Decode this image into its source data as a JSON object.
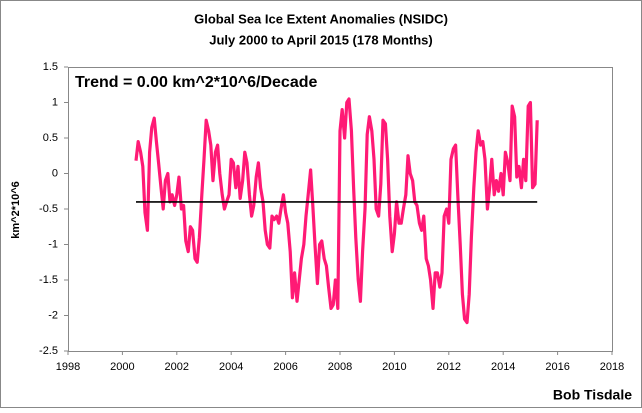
{
  "chart_data": {
    "type": "line",
    "title": "Global Sea Ice Extent Anomalies (NSIDC)",
    "subtitle": "July 2000 to April 2015 (178 Months)",
    "y_label": "km^2*10^6",
    "annotation": "Trend = 0.00 km^2*10^6/Decade",
    "credit": "Bob Tisdale",
    "color": "#ff1a75",
    "x": [
      2000.5,
      2000.58,
      2000.67,
      2000.75,
      2000.83,
      2000.92,
      2001,
      2001.08,
      2001.17,
      2001.25,
      2001.33,
      2001.42,
      2001.5,
      2001.58,
      2001.67,
      2001.75,
      2001.83,
      2001.92,
      2002,
      2002.08,
      2002.17,
      2002.25,
      2002.33,
      2002.42,
      2002.5,
      2002.58,
      2002.67,
      2002.75,
      2002.83,
      2002.92,
      2003,
      2003.08,
      2003.17,
      2003.25,
      2003.33,
      2003.42,
      2003.5,
      2003.58,
      2003.67,
      2003.75,
      2003.83,
      2003.92,
      2004,
      2004.08,
      2004.17,
      2004.25,
      2004.33,
      2004.42,
      2004.5,
      2004.58,
      2004.67,
      2004.75,
      2004.83,
      2004.92,
      2005,
      2005.08,
      2005.17,
      2005.25,
      2005.33,
      2005.42,
      2005.5,
      2005.58,
      2005.67,
      2005.75,
      2005.83,
      2005.92,
      2006,
      2006.08,
      2006.17,
      2006.25,
      2006.33,
      2006.42,
      2006.5,
      2006.58,
      2006.67,
      2006.75,
      2006.83,
      2006.92,
      2007,
      2007.08,
      2007.17,
      2007.25,
      2007.33,
      2007.42,
      2007.5,
      2007.58,
      2007.67,
      2007.75,
      2007.83,
      2007.92,
      2008,
      2008.08,
      2008.17,
      2008.25,
      2008.33,
      2008.42,
      2008.5,
      2008.58,
      2008.67,
      2008.75,
      2008.83,
      2008.92,
      2009,
      2009.08,
      2009.17,
      2009.25,
      2009.33,
      2009.42,
      2009.5,
      2009.58,
      2009.67,
      2009.75,
      2009.83,
      2009.92,
      2010,
      2010.08,
      2010.17,
      2010.25,
      2010.33,
      2010.42,
      2010.5,
      2010.58,
      2010.67,
      2010.75,
      2010.83,
      2010.92,
      2011,
      2011.08,
      2011.17,
      2011.25,
      2011.33,
      2011.42,
      2011.5,
      2011.58,
      2011.67,
      2011.75,
      2011.83,
      2011.92,
      2012,
      2012.08,
      2012.17,
      2012.25,
      2012.33,
      2012.42,
      2012.5,
      2012.58,
      2012.67,
      2012.75,
      2012.83,
      2012.92,
      2013,
      2013.08,
      2013.17,
      2013.25,
      2013.33,
      2013.42,
      2013.5,
      2013.58,
      2013.67,
      2013.75,
      2013.83,
      2013.92,
      2014,
      2014.08,
      2014.17,
      2014.25,
      2014.33,
      2014.42,
      2014.5,
      2014.58,
      2014.67,
      2014.75,
      2014.83,
      2014.92,
      2015,
      2015.08,
      2015.17,
      2015.25
    ],
    "values": [
      0.18,
      0.45,
      0.3,
      0.1,
      -0.55,
      -0.8,
      0.3,
      0.65,
      0.78,
      0.45,
      0.15,
      -0.2,
      -0.5,
      -0.1,
      0.0,
      -0.4,
      -0.3,
      -0.45,
      -0.3,
      -0.05,
      -0.5,
      -0.45,
      -0.95,
      -1.1,
      -0.75,
      -0.8,
      -1.2,
      -1.25,
      -0.9,
      -0.3,
      0.2,
      0.75,
      0.6,
      0.4,
      -0.1,
      0.3,
      0.4,
      0.0,
      -0.3,
      -0.5,
      -0.4,
      -0.3,
      0.2,
      0.15,
      -0.2,
      0.1,
      -0.35,
      -0.1,
      0.3,
      0.15,
      -0.3,
      -0.6,
      -0.45,
      -0.05,
      0.15,
      -0.2,
      -0.4,
      -0.8,
      -1.0,
      -1.05,
      -0.6,
      -0.65,
      -0.6,
      -0.7,
      -0.5,
      -0.3,
      -0.55,
      -0.7,
      -1.1,
      -1.75,
      -1.4,
      -1.8,
      -1.5,
      -1.2,
      -1.0,
      -0.6,
      -0.3,
      0.05,
      -0.45,
      -1.0,
      -1.55,
      -1.0,
      -0.95,
      -1.2,
      -1.3,
      -1.6,
      -1.9,
      -1.85,
      -1.5,
      -1.9,
      0.6,
      0.9,
      0.5,
      1.0,
      1.05,
      0.6,
      -0.2,
      -0.9,
      -1.5,
      -1.8,
      -1.1,
      -0.5,
      0.55,
      0.8,
      0.6,
      0.2,
      -0.5,
      -0.6,
      -0.15,
      0.75,
      0.7,
      0.2,
      -0.6,
      -1.1,
      -0.85,
      -0.4,
      -0.7,
      -0.7,
      -0.5,
      -0.3,
      0.25,
      0.0,
      -0.1,
      -0.4,
      -0.45,
      -0.7,
      -0.8,
      -0.6,
      -1.2,
      -1.3,
      -1.5,
      -1.9,
      -1.4,
      -1.4,
      -1.6,
      -1.4,
      -0.6,
      -0.5,
      -0.7,
      0.2,
      0.35,
      0.4,
      -0.3,
      -1.0,
      -1.7,
      -2.05,
      -2.1,
      -1.7,
      -0.9,
      -0.2,
      0.3,
      0.6,
      0.4,
      0.45,
      0.2,
      -0.5,
      -0.2,
      0.2,
      -0.3,
      -0.1,
      -0.25,
      0.0,
      -0.3,
      0.3,
      0.15,
      -0.1,
      0.95,
      0.8,
      -0.05,
      0.1,
      -0.2,
      0.2,
      -0.1,
      0.95,
      1.0,
      -0.2,
      -0.15,
      0.75
    ],
    "trend_line": {
      "x": [
        2000.5,
        2015.25
      ],
      "values": [
        -0.4,
        -0.4
      ],
      "color": "#000000"
    },
    "xlim": [
      1998,
      2018
    ],
    "xticks": [
      1998,
      2000,
      2002,
      2004,
      2006,
      2008,
      2010,
      2012,
      2014,
      2016,
      2018
    ],
    "ylim": [
      -2.5,
      1.5
    ],
    "yticks": [
      -2.5,
      -2,
      -1.5,
      -1,
      -0.5,
      0,
      0.5,
      1,
      1.5
    ],
    "grid": false
  }
}
